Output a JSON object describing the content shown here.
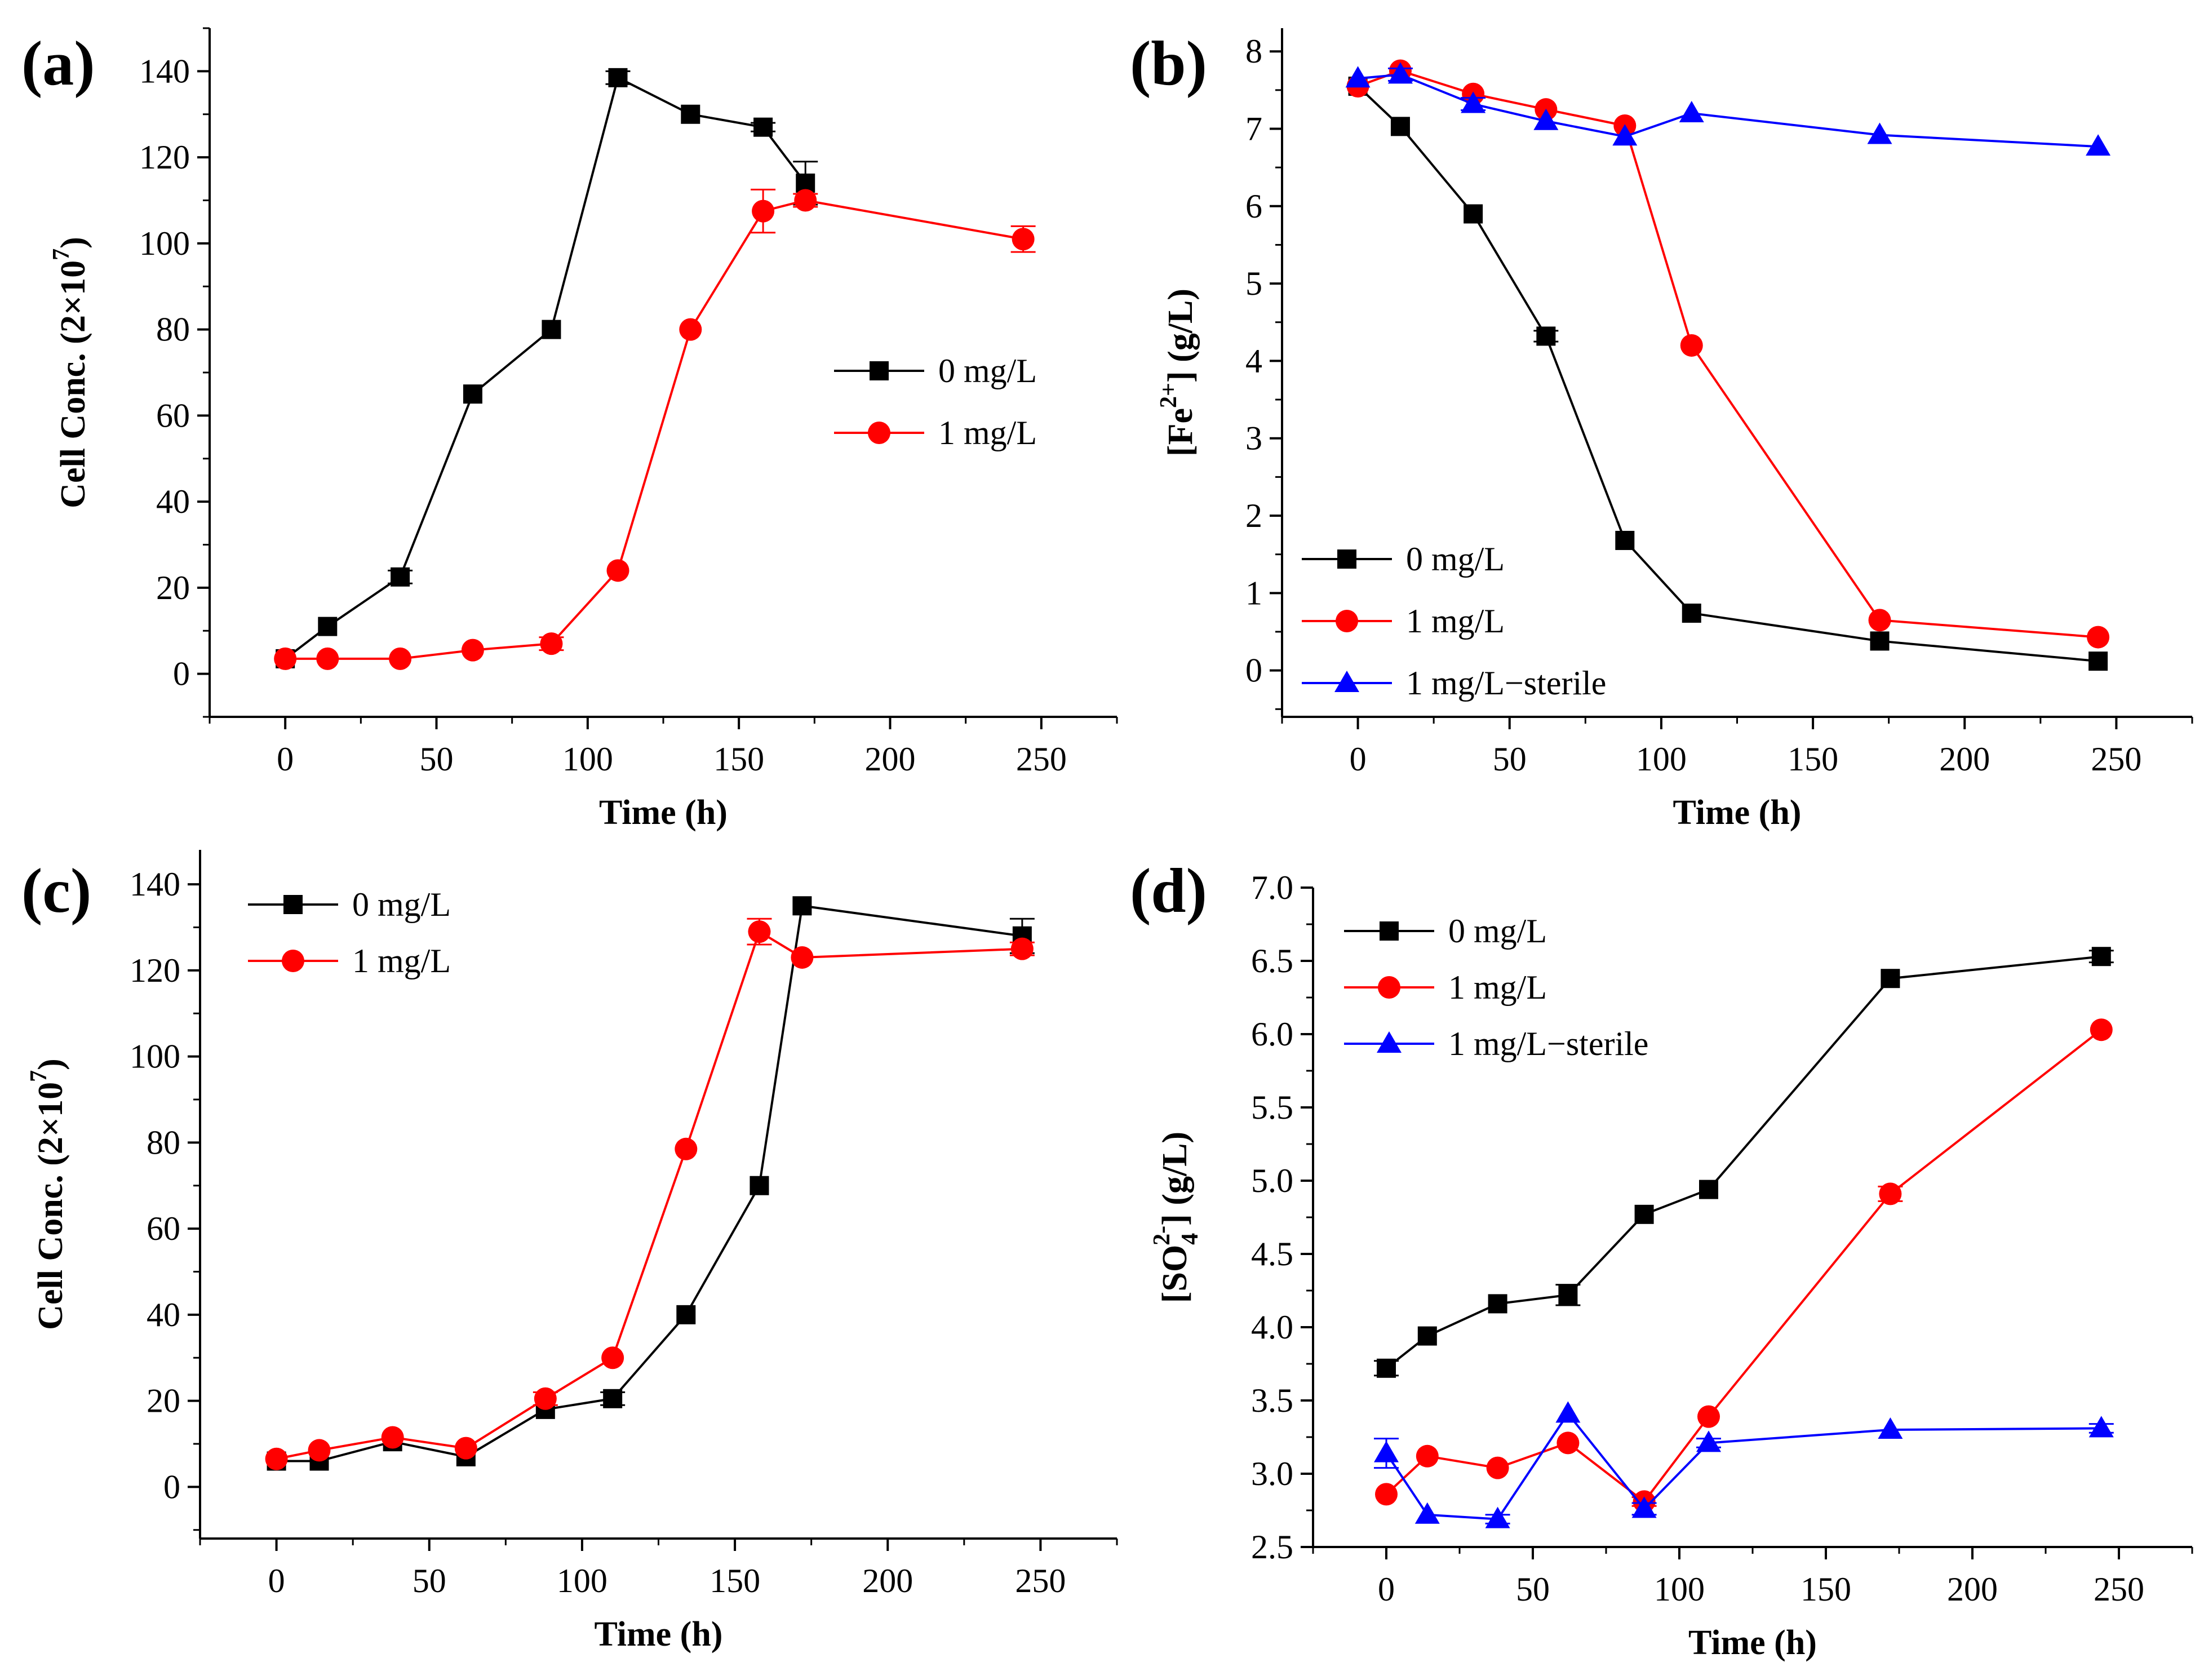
{
  "figure": {
    "title": ""
  },
  "chart_data": [
    {
      "panel_label": "(a)",
      "type": "line",
      "xlabel": "Time (h)",
      "ylabel": "Cell Conc. (2×10",
      "ylabel_sup": "7",
      "ylabel_close": ")",
      "xlim": [
        -25,
        275
      ],
      "ylim": [
        -10,
        150
      ],
      "xticks": [
        0,
        50,
        100,
        150,
        200,
        250
      ],
      "yticks": [
        0,
        20,
        40,
        60,
        80,
        100,
        120,
        140
      ],
      "xtick_labels": [
        "0",
        "50",
        "100",
        "150",
        "200",
        "250"
      ],
      "ytick_labels": [
        "0",
        "20",
        "40",
        "60",
        "80",
        "100",
        "120",
        "140"
      ],
      "legend_position": "center-right",
      "series": [
        {
          "name": "0 mg/L",
          "marker": "square",
          "color": "#000000",
          "x": [
            0,
            14,
            38,
            62,
            88,
            110,
            134,
            158,
            172
          ],
          "y": [
            3.5,
            11,
            22.5,
            65,
            80,
            138.5,
            130,
            127,
            114
          ],
          "err": [
            0,
            0,
            1.5,
            0,
            0,
            1.5,
            0,
            1,
            5
          ]
        },
        {
          "name": "1 mg/L",
          "marker": "circle",
          "color": "#ff0000",
          "x": [
            0,
            14,
            38,
            62,
            88,
            110,
            134,
            158,
            172,
            244
          ],
          "y": [
            3.5,
            3.5,
            3.5,
            5.5,
            7,
            24,
            80,
            107.5,
            110,
            101
          ],
          "err": [
            0,
            0,
            0,
            0,
            1.5,
            0,
            0,
            5,
            1.5,
            3
          ]
        }
      ]
    },
    {
      "panel_label": "(b)",
      "type": "line",
      "xlabel": "Time (h)",
      "ylabel": "[Fe",
      "ylabel_sup": "2+",
      "ylabel_close": "] (g/L)",
      "xlim": [
        -25,
        275
      ],
      "ylim": [
        -0.6,
        8.3
      ],
      "xticks": [
        0,
        50,
        100,
        150,
        200,
        250
      ],
      "yticks": [
        0,
        1,
        2,
        3,
        4,
        5,
        6,
        7,
        8
      ],
      "xtick_labels": [
        "0",
        "50",
        "100",
        "150",
        "200",
        "250"
      ],
      "ytick_labels": [
        "0",
        "1",
        "2",
        "3",
        "4",
        "5",
        "6",
        "7",
        "8"
      ],
      "legend_position": "bottom-left",
      "series": [
        {
          "name": "0 mg/L",
          "marker": "square",
          "color": "#000000",
          "x": [
            0,
            14,
            38,
            62,
            88,
            110,
            172,
            244
          ],
          "y": [
            7.55,
            7.03,
            5.9,
            4.32,
            1.68,
            0.74,
            0.38,
            0.12
          ],
          "err": [
            0,
            0,
            0,
            0.07,
            0,
            0,
            0,
            0
          ]
        },
        {
          "name": "1 mg/L",
          "marker": "circle",
          "color": "#ff0000",
          "x": [
            0,
            14,
            38,
            62,
            88,
            110,
            172,
            244
          ],
          "y": [
            7.55,
            7.75,
            7.45,
            7.25,
            7.04,
            4.2,
            0.65,
            0.43
          ],
          "err": [
            0,
            0,
            0,
            0,
            0,
            0,
            0,
            0
          ]
        },
        {
          "name": "1 mg/L−sterile",
          "marker": "triangle",
          "color": "#0000ff",
          "x": [
            0,
            14,
            38,
            62,
            88,
            110,
            172,
            244
          ],
          "y": [
            7.65,
            7.7,
            7.32,
            7.1,
            6.9,
            7.2,
            6.92,
            6.77
          ],
          "err": [
            0,
            0.08,
            0.08,
            0,
            0,
            0,
            0,
            0
          ]
        }
      ]
    },
    {
      "panel_label": "(c)",
      "type": "line",
      "xlabel": "Time (h)",
      "ylabel": "Cell Conc. (2×10",
      "ylabel_sup": "7",
      "ylabel_close": ")",
      "xlim": [
        -25,
        275
      ],
      "ylim": [
        -12,
        148
      ],
      "xticks": [
        0,
        50,
        100,
        150,
        200,
        250
      ],
      "yticks": [
        0,
        20,
        40,
        60,
        80,
        100,
        120,
        140
      ],
      "xtick_labels": [
        "0",
        "50",
        "100",
        "150",
        "200",
        "250"
      ],
      "ytick_labels": [
        "0",
        "20",
        "40",
        "60",
        "80",
        "100",
        "120",
        "140"
      ],
      "legend_position": "top-left",
      "series": [
        {
          "name": "0 mg/L",
          "marker": "square",
          "color": "#000000",
          "x": [
            0,
            14,
            38,
            62,
            88,
            110,
            134,
            158,
            172,
            244
          ],
          "y": [
            6,
            6,
            10.5,
            7,
            18,
            20.5,
            40,
            70,
            135,
            128
          ],
          "err": [
            0,
            0,
            0,
            0,
            0,
            1.5,
            0,
            0,
            0,
            4
          ]
        },
        {
          "name": "1 mg/L",
          "marker": "circle",
          "color": "#ff0000",
          "x": [
            0,
            14,
            38,
            62,
            88,
            110,
            134,
            158,
            172,
            244
          ],
          "y": [
            6.5,
            8.5,
            11.5,
            9,
            20.5,
            30,
            78.5,
            129,
            123,
            125
          ],
          "err": [
            0,
            0,
            0,
            0,
            1.5,
            0,
            0,
            3,
            0,
            1.5
          ]
        }
      ]
    },
    {
      "panel_label": "(d)",
      "type": "line",
      "xlabel": "Time (h)",
      "ylabel": "[SO",
      "ylabel_sub": "4",
      "ylabel_sup": "2-",
      "ylabel_close": "] (g/L)",
      "xlim": [
        -25,
        275
      ],
      "ylim": [
        2.5,
        7.0
      ],
      "xticks": [
        0,
        50,
        100,
        150,
        200,
        250
      ],
      "yticks": [
        2.5,
        3.0,
        3.5,
        4.0,
        4.5,
        5.0,
        5.5,
        6.0,
        6.5,
        7.0
      ],
      "xtick_labels": [
        "0",
        "50",
        "100",
        "150",
        "200",
        "250"
      ],
      "ytick_labels": [
        "2.5",
        "3.0",
        "3.5",
        "4.0",
        "4.5",
        "5.0",
        "5.5",
        "6.0",
        "6.5",
        "7.0"
      ],
      "legend_position": "top-left",
      "series": [
        {
          "name": "0 mg/L",
          "marker": "square",
          "color": "#000000",
          "x": [
            0,
            14,
            38,
            62,
            88,
            110,
            172,
            244
          ],
          "y": [
            3.72,
            3.94,
            4.16,
            4.22,
            4.77,
            4.94,
            6.38,
            6.53
          ],
          "err": [
            0.05,
            0,
            0,
            0.07,
            0,
            0,
            0,
            0.04
          ]
        },
        {
          "name": "1 mg/L",
          "marker": "circle",
          "color": "#ff0000",
          "x": [
            0,
            14,
            38,
            62,
            88,
            110,
            172,
            244
          ],
          "y": [
            2.86,
            3.12,
            3.04,
            3.21,
            2.81,
            3.39,
            4.91,
            6.03
          ],
          "err": [
            0,
            0,
            0,
            0,
            0.03,
            0,
            0.05,
            0
          ]
        },
        {
          "name": "1 mg/L−sterile",
          "marker": "triangle",
          "color": "#0000ff",
          "x": [
            0,
            14,
            38,
            62,
            88,
            110,
            172,
            244
          ],
          "y": [
            3.14,
            2.72,
            2.69,
            3.41,
            2.76,
            3.21,
            3.3,
            3.31
          ],
          "err": [
            0.1,
            0,
            0.03,
            0,
            0.04,
            0.03,
            0,
            0.03
          ]
        }
      ]
    }
  ]
}
